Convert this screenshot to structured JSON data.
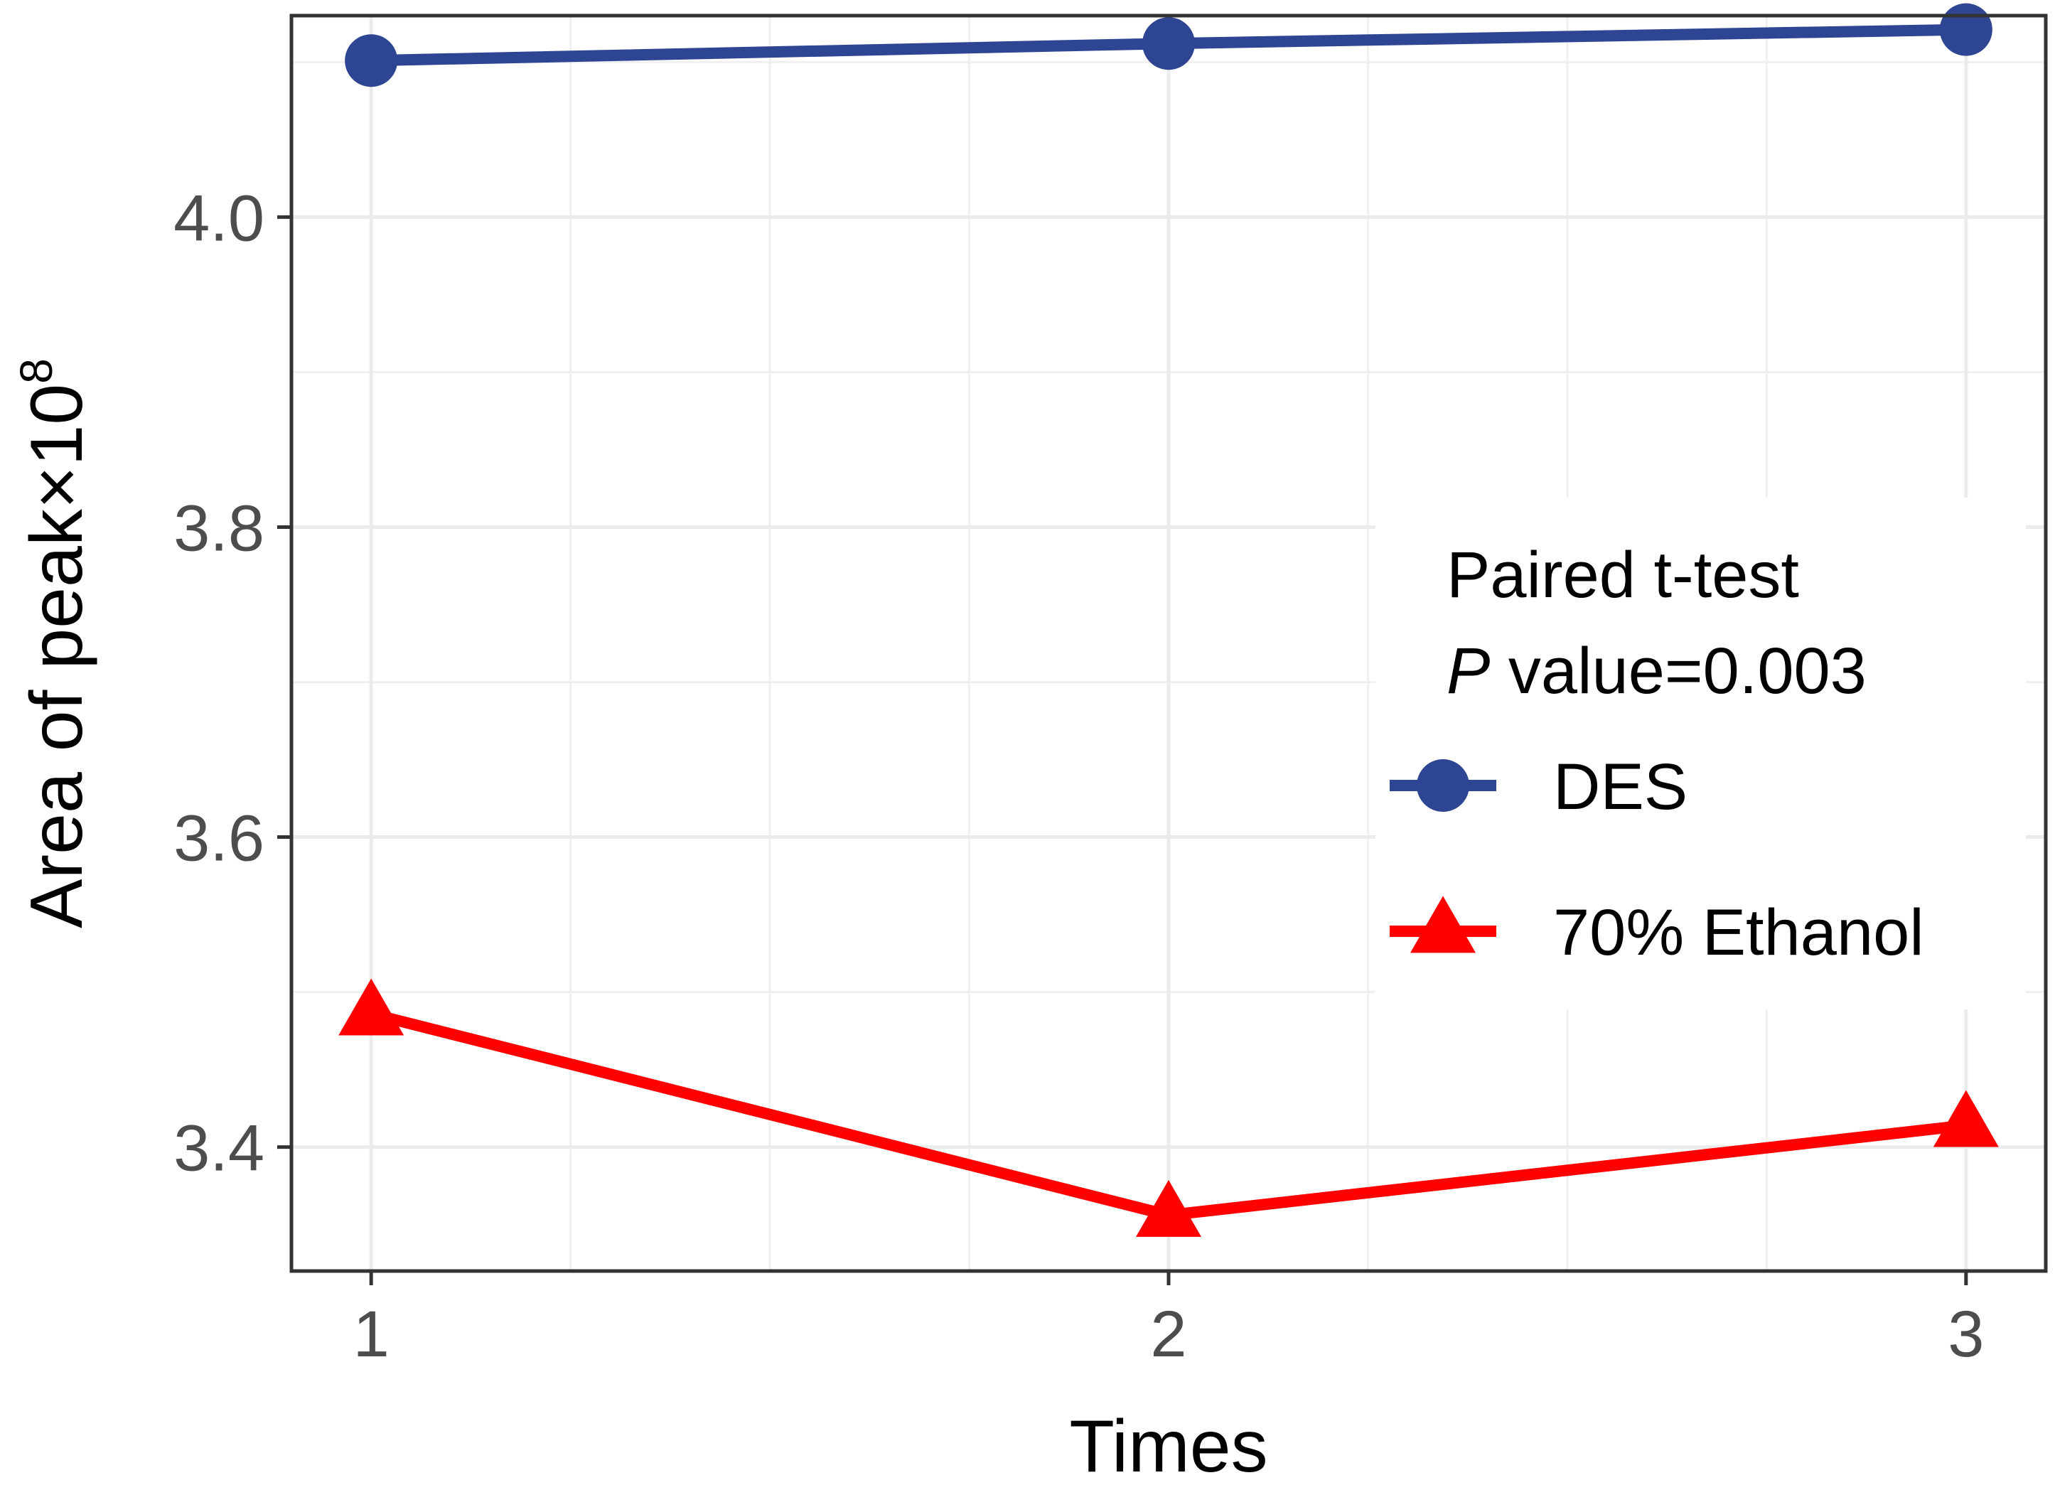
{
  "chart_data": {
    "type": "line",
    "xlabel": "Times",
    "ylabel": "Area of peak×10",
    "ylabel_sup": "8",
    "x": [
      1,
      2,
      3
    ],
    "x_ticks": [
      1,
      2,
      3
    ],
    "x_tick_labels": [
      "1",
      "2",
      "3"
    ],
    "y_ticks": [
      3.4,
      3.6,
      3.8,
      4.0
    ],
    "y_tick_labels": [
      "3.4",
      "3.6",
      "3.8",
      "4.0"
    ],
    "xlim": [
      0.9,
      3.1
    ],
    "ylim": [
      3.32,
      4.13
    ],
    "grid": true,
    "legend": {
      "placement": "right",
      "title_line1": "Paired t-test",
      "title_line2_italic": "P",
      "title_line2": " value=0.003"
    },
    "series": [
      {
        "name": "DES",
        "values": [
          4.101,
          4.112,
          4.121
        ],
        "color": "#2e4593",
        "marker": "circle"
      },
      {
        "name": "70% Ethanol",
        "values": [
          3.486,
          3.356,
          3.414
        ],
        "color": "#ff0000",
        "marker": "triangle"
      }
    ]
  }
}
